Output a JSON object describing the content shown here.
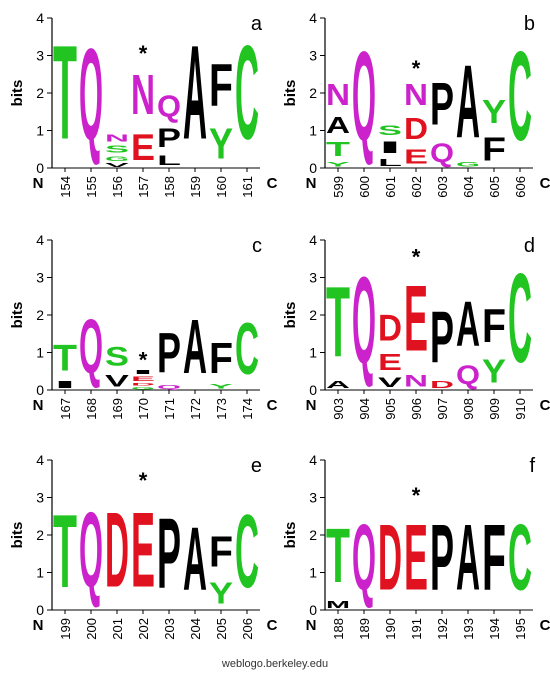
{
  "credit": "weblogo.berkeley.edu",
  "colors": {
    "green": "#21c421",
    "magenta": "#cc22cc",
    "red": "#e0121f",
    "black": "#000000"
  },
  "axis": {
    "ylabel": "bits",
    "yticks": [
      "0",
      "1",
      "2",
      "3",
      "4"
    ],
    "ymax": 4,
    "left_end": "N",
    "right_end": "C",
    "marker": "*"
  },
  "panels": [
    {
      "letter": "a",
      "positions": [
        "154",
        "155",
        "156",
        "157",
        "158",
        "159",
        "160",
        "161"
      ],
      "star_index": 3,
      "stacks": [
        [
          {
            "l": "T",
            "h": 4.0,
            "c": "green"
          }
        ],
        [
          {
            "l": "Q",
            "h": 3.9,
            "c": "magenta"
          }
        ],
        [
          {
            "l": "V",
            "h": 0.15,
            "c": "black"
          },
          {
            "l": "G",
            "h": 0.2,
            "c": "green"
          },
          {
            "l": "S",
            "h": 0.3,
            "c": "green"
          },
          {
            "l": "N",
            "h": 0.3,
            "c": "magenta"
          }
        ],
        [
          {
            "l": "E",
            "h": 1.1,
            "c": "red"
          },
          {
            "l": "N",
            "h": 1.7,
            "c": "magenta"
          }
        ],
        [
          {
            "l": "L",
            "h": 0.4,
            "c": "black"
          },
          {
            "l": "P",
            "h": 0.8,
            "c": "black"
          },
          {
            "l": "Q",
            "h": 0.9,
            "c": "magenta"
          }
        ],
        [
          {
            "l": "A",
            "h": 4.0,
            "c": "black"
          }
        ],
        [
          {
            "l": "Y",
            "h": 1.3,
            "c": "green"
          },
          {
            "l": "F",
            "h": 1.8,
            "c": "black"
          }
        ],
        [
          {
            "l": "C",
            "h": 4.0,
            "c": "green"
          }
        ]
      ]
    },
    {
      "letter": "b",
      "positions": [
        "599",
        "600",
        "601",
        "602",
        "603",
        "604",
        "605",
        "606"
      ],
      "star_index": 3,
      "stacks": [
        [
          {
            "l": "Y",
            "h": 0.2,
            "c": "green"
          },
          {
            "l": "T",
            "h": 0.6,
            "c": "green"
          },
          {
            "l": "A",
            "h": 0.7,
            "c": "black"
          },
          {
            "l": "N",
            "h": 0.9,
            "c": "magenta"
          }
        ],
        [
          {
            "l": "Q",
            "h": 3.8,
            "c": "magenta"
          }
        ],
        [
          {
            "l": "L",
            "h": 0.3,
            "c": "black"
          },
          {
            "l": "I",
            "h": 0.5,
            "c": "black"
          },
          {
            "l": "S",
            "h": 0.4,
            "c": "green"
          }
        ],
        [
          {
            "l": "E",
            "h": 0.6,
            "c": "red"
          },
          {
            "l": "D",
            "h": 0.9,
            "c": "red"
          },
          {
            "l": "N",
            "h": 0.9,
            "c": "magenta"
          }
        ],
        [
          {
            "l": "Q",
            "h": 0.8,
            "c": "magenta"
          },
          {
            "l": "P",
            "h": 1.8,
            "c": "black"
          }
        ],
        [
          {
            "l": "G",
            "h": 0.2,
            "c": "green"
          },
          {
            "l": "A",
            "h": 3.1,
            "c": "black"
          }
        ],
        [
          {
            "l": "F",
            "h": 1.0,
            "c": "black"
          },
          {
            "l": "Y",
            "h": 1.0,
            "c": "green"
          }
        ],
        [
          {
            "l": "C",
            "h": 3.8,
            "c": "green"
          }
        ]
      ]
    },
    {
      "letter": "c",
      "positions": [
        "167",
        "168",
        "169",
        "170",
        "171",
        "172",
        "173",
        "174"
      ],
      "star_index": 3,
      "stacks": [
        [
          {
            "l": "I",
            "h": 0.3,
            "c": "black"
          },
          {
            "l": "T",
            "h": 1.1,
            "c": "green"
          }
        ],
        [
          {
            "l": "Q",
            "h": 2.3,
            "c": "magenta"
          }
        ],
        [
          {
            "l": "V",
            "h": 0.5,
            "c": "black"
          },
          {
            "l": "S",
            "h": 0.8,
            "c": "green"
          }
        ],
        [
          {
            "l": "G",
            "h": 0.1,
            "c": "green"
          },
          {
            "l": "D",
            "h": 0.1,
            "c": "red"
          },
          {
            "l": "E",
            "h": 0.2,
            "c": "red"
          },
          {
            "l": "I",
            "h": 0.15,
            "c": "black"
          }
        ],
        [
          {
            "l": "Q",
            "h": 0.15,
            "c": "magenta"
          },
          {
            "l": "P",
            "h": 1.7,
            "c": "black"
          }
        ],
        [
          {
            "l": "A",
            "h": 2.3,
            "c": "black"
          }
        ],
        [
          {
            "l": "Y",
            "h": 0.2,
            "c": "green"
          },
          {
            "l": "F",
            "h": 1.3,
            "c": "black"
          }
        ],
        [
          {
            "l": "C",
            "h": 2.2,
            "c": "green"
          }
        ]
      ]
    },
    {
      "letter": "d",
      "positions": [
        "903",
        "904",
        "905",
        "906",
        "907",
        "908",
        "909",
        "910"
      ],
      "star_index": 3,
      "stacks": [
        [
          {
            "l": "A",
            "h": 0.3,
            "c": "black"
          },
          {
            "l": "T",
            "h": 3.0,
            "c": "green"
          }
        ],
        [
          {
            "l": "Q",
            "h": 3.7,
            "c": "magenta"
          }
        ],
        [
          {
            "l": "V",
            "h": 0.4,
            "c": "black"
          },
          {
            "l": "E",
            "h": 0.7,
            "c": "red"
          },
          {
            "l": "D",
            "h": 1.1,
            "c": "red"
          }
        ],
        [
          {
            "l": "N",
            "h": 0.5,
            "c": "magenta"
          },
          {
            "l": "E",
            "h": 2.8,
            "c": "red"
          }
        ],
        [
          {
            "l": "D",
            "h": 0.3,
            "c": "red"
          },
          {
            "l": "P",
            "h": 2.2,
            "c": "black"
          }
        ],
        [
          {
            "l": "Q",
            "h": 0.8,
            "c": "magenta"
          },
          {
            "l": "A",
            "h": 1.9,
            "c": "black"
          }
        ],
        [
          {
            "l": "Y",
            "h": 1.0,
            "c": "green"
          },
          {
            "l": "F",
            "h": 1.4,
            "c": "black"
          }
        ],
        [
          {
            "l": "C",
            "h": 3.8,
            "c": "green"
          }
        ]
      ]
    },
    {
      "letter": "e",
      "positions": [
        "199",
        "200",
        "201",
        "202",
        "203",
        "204",
        "205",
        "206"
      ],
      "star_index": 3,
      "stacks": [
        [
          {
            "l": "T",
            "h": 3.1,
            "c": "green"
          }
        ],
        [
          {
            "l": "Q",
            "h": 3.2,
            "c": "magenta"
          }
        ],
        [
          {
            "l": "D",
            "h": 3.2,
            "c": "red"
          }
        ],
        [
          {
            "l": "E",
            "h": 3.2,
            "c": "red"
          }
        ],
        [
          {
            "l": "P",
            "h": 3.0,
            "c": "black"
          }
        ],
        [
          {
            "l": "A",
            "h": 2.7,
            "c": "black"
          }
        ],
        [
          {
            "l": "Y",
            "h": 0.9,
            "c": "green"
          },
          {
            "l": "F",
            "h": 1.3,
            "c": "black"
          }
        ],
        [
          {
            "l": "C",
            "h": 3.1,
            "c": "green"
          }
        ]
      ]
    },
    {
      "letter": "f",
      "positions": [
        "188",
        "189",
        "190",
        "191",
        "192",
        "193",
        "194",
        "195"
      ],
      "star_index": 3,
      "stacks": [
        [
          {
            "l": "M",
            "h": 0.3,
            "c": "black"
          },
          {
            "l": "T",
            "h": 2.3,
            "c": "green"
          }
        ],
        [
          {
            "l": "Q",
            "h": 2.8,
            "c": "magenta"
          }
        ],
        [
          {
            "l": "D",
            "h": 2.8,
            "c": "red"
          }
        ],
        [
          {
            "l": "E",
            "h": 2.8,
            "c": "red"
          }
        ],
        [
          {
            "l": "P",
            "h": 2.8,
            "c": "black"
          }
        ],
        [
          {
            "l": "A",
            "h": 2.8,
            "c": "black"
          }
        ],
        [
          {
            "l": "F",
            "h": 2.8,
            "c": "black"
          }
        ],
        [
          {
            "l": "C",
            "h": 2.8,
            "c": "green"
          }
        ]
      ]
    }
  ]
}
